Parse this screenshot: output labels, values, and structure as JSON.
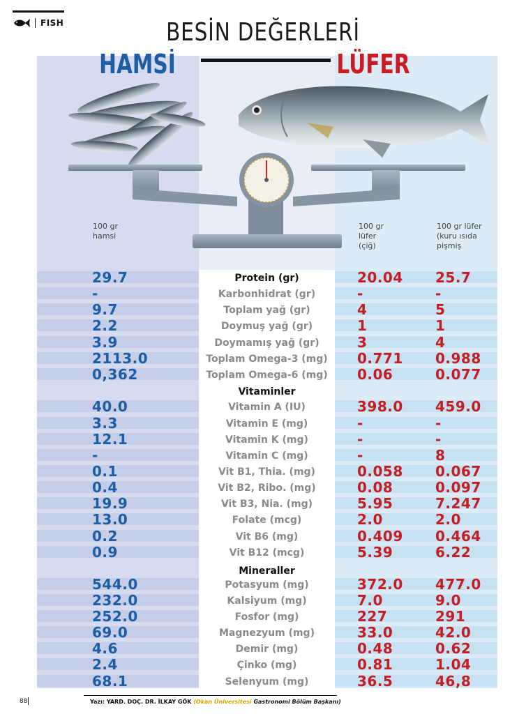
{
  "header": {
    "section": "FISH",
    "title": "BESİN DEĞERLERİ"
  },
  "fish": {
    "left": "HAMSİ",
    "right": "LÜFER"
  },
  "columns": {
    "hamsi": "100 gr hamsi",
    "lufer_raw": "100 gr lüfer (çiğ)",
    "lufer_cooked": "100 gr lüfer (kuru ısıda pişmiş"
  },
  "column_lines": {
    "hamsi": [
      "100 gr",
      "hamsi"
    ],
    "lufer_raw": [
      "100 gr",
      "lüfer",
      "(çiğ)"
    ],
    "lufer_cooked": [
      "100 gr lüfer",
      "(kuru ısıda",
      "pişmiş"
    ]
  },
  "sections": {
    "vitamins": "Vitaminler",
    "minerals": "Mineraller"
  },
  "rows": [
    {
      "label": "Protein (gr)",
      "hamsi": "29.7",
      "lufer_raw": "20.04",
      "lufer_cooked": "25.7"
    },
    {
      "label": "Karbonhidrat (gr)",
      "hamsi": "-",
      "lufer_raw": "-",
      "lufer_cooked": "-"
    },
    {
      "label": "Toplam yağ (gr)",
      "hamsi": "9.7",
      "lufer_raw": "4",
      "lufer_cooked": "5"
    },
    {
      "label": "Doymuş yağ (gr)",
      "hamsi": "2.2",
      "lufer_raw": "1",
      "lufer_cooked": "1"
    },
    {
      "label": "Doymamış yağ (gr)",
      "hamsi": "3.9",
      "lufer_raw": "3",
      "lufer_cooked": "4"
    },
    {
      "label": "Toplam Omega-3 (mg)",
      "hamsi": "2113.0",
      "lufer_raw": "0.771",
      "lufer_cooked": "0.988"
    },
    {
      "label": "Toplam Omega-6 (mg)",
      "hamsi": "0,362",
      "lufer_raw": "0.06",
      "lufer_cooked": "0.077"
    },
    {
      "label": "Vitamin A (IU)",
      "hamsi": "40.0",
      "lufer_raw": "398.0",
      "lufer_cooked": "459.0"
    },
    {
      "label": "Vitamin E (mg)",
      "hamsi": "3.3",
      "lufer_raw": "-",
      "lufer_cooked": "-"
    },
    {
      "label": "Vitamin K (mg)",
      "hamsi": "12.1",
      "lufer_raw": "-",
      "lufer_cooked": "-"
    },
    {
      "label": "Vitamin C (mg)",
      "hamsi": "-",
      "lufer_raw": "-",
      "lufer_cooked": "8"
    },
    {
      "label": "Vit B1, Thia. (mg)",
      "hamsi": "0.1",
      "lufer_raw": "0.058",
      "lufer_cooked": "0.067"
    },
    {
      "label": "Vit B2, Ribo. (mg)",
      "hamsi": "0.4",
      "lufer_raw": "0.08",
      "lufer_cooked": "0.097"
    },
    {
      "label": "Vit B3, Nia. (mg)",
      "hamsi": "19.9",
      "lufer_raw": "5.95",
      "lufer_cooked": "7.247"
    },
    {
      "label": "Folate (mcg)",
      "hamsi": "13.0",
      "lufer_raw": "2.0",
      "lufer_cooked": "2.0"
    },
    {
      "label": "Vit B6 (mg)",
      "hamsi": "0.2",
      "lufer_raw": "0.409",
      "lufer_cooked": "0.464"
    },
    {
      "label": "Vit B12 (mcg)",
      "hamsi": "0.9",
      "lufer_raw": "5.39",
      "lufer_cooked": "6.22"
    },
    {
      "label": "Potasyum (mg)",
      "hamsi": "544.0",
      "lufer_raw": "372.0",
      "lufer_cooked": "477.0"
    },
    {
      "label": "Kalsiyum (mg)",
      "hamsi": "232.0",
      "lufer_raw": "7.0",
      "lufer_cooked": "9.0"
    },
    {
      "label": "Fosfor (mg)",
      "hamsi": "252.0",
      "lufer_raw": "227",
      "lufer_cooked": "291"
    },
    {
      "label": "Magnezyum (mg)",
      "hamsi": "69.0",
      "lufer_raw": "33.0",
      "lufer_cooked": "42.0"
    },
    {
      "label": "Demir (mg)",
      "hamsi": "4.6",
      "lufer_raw": "0.48",
      "lufer_cooked": "0.62"
    },
    {
      "label": "Çinko (mg)",
      "hamsi": "2.4",
      "lufer_raw": "0.81",
      "lufer_cooked": "1.04"
    },
    {
      "label": "Selenyum (mg)",
      "hamsi": "68.1",
      "lufer_raw": "36.5",
      "lufer_cooked": "46,8"
    }
  ],
  "footer": {
    "page": "88",
    "author": "Yazı: YARD. DOÇ. DR. İLKAY GÖK",
    "org": "(Okan Üniversitesi",
    "role": "Gastronomi Bölüm Başkanı)"
  },
  "colors": {
    "hamsi": "#1d5da3",
    "lufer": "#c41e24"
  }
}
